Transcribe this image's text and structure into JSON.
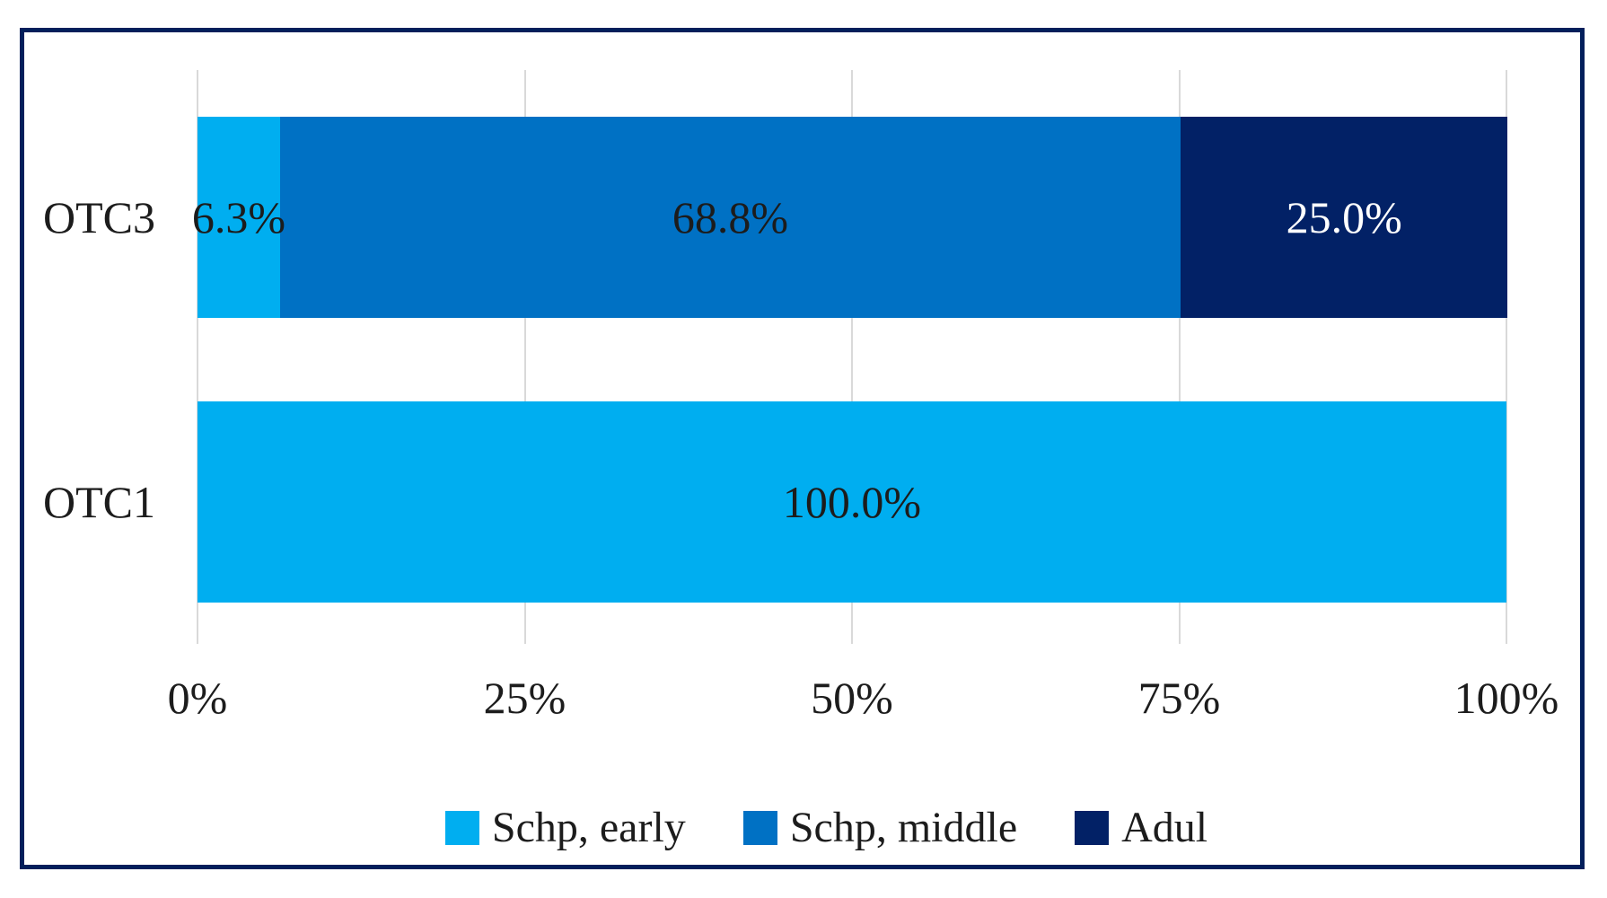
{
  "figure": {
    "background_color": "#FFFFFF",
    "border_color": "#021F5B",
    "gridline_color": "#D9D9D9",
    "text_color": "#1C1C1C"
  },
  "chart_data": {
    "type": "bar",
    "orientation": "horizontal",
    "stacked": true,
    "grid": true,
    "legend_position": "bottom",
    "categories": [
      "OTC3",
      "OTC1"
    ],
    "series": [
      {
        "name": "Schp, early",
        "color": "#00AEF0",
        "values": [
          6.3,
          100.0
        ],
        "data_labels": [
          "6.3%",
          "100.0%"
        ],
        "label_color": "#1C1C1C"
      },
      {
        "name": "Schp, middle",
        "color": "#0071C4",
        "values": [
          68.8,
          0
        ],
        "data_labels": [
          "68.8%",
          ""
        ],
        "label_color": "#1C1C1C"
      },
      {
        "name": "Adul",
        "color": "#022166",
        "values": [
          25.0,
          0
        ],
        "data_labels": [
          "25.0%",
          ""
        ],
        "label_color": "#FFFFFF"
      }
    ],
    "x_axis": {
      "min": 0,
      "max": 100,
      "ticks": [
        "0%",
        "25%",
        "50%",
        "75%",
        "100%"
      ]
    }
  }
}
